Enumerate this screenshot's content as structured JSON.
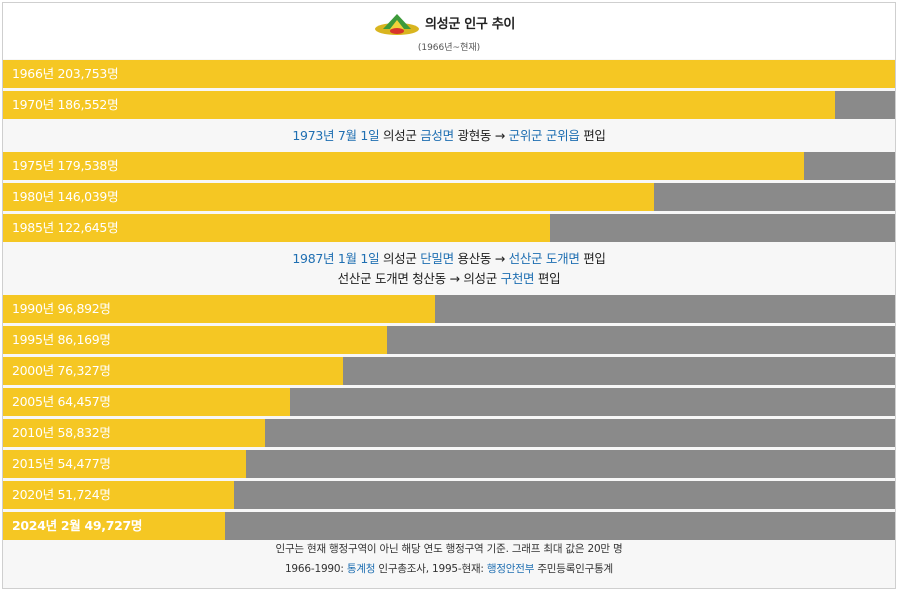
{
  "header": {
    "title": "의성군 인구 추이",
    "subtitle": "(1966년~현재)",
    "colors": {
      "bar": "#f5c723",
      "remainder": "#8a8a8a",
      "link": "#1f6fb2"
    }
  },
  "chart_data": {
    "type": "bar",
    "orientation": "horizontal",
    "max_value": 200000,
    "categories": [
      "1966년",
      "1970년",
      "1975년",
      "1980년",
      "1985년",
      "1990년",
      "1995년",
      "2000년",
      "2005년",
      "2010년",
      "2015년",
      "2020년",
      "2024년 2월"
    ],
    "values": [
      203753,
      186552,
      179538,
      146039,
      122645,
      96892,
      86169,
      76327,
      64457,
      58832,
      54477,
      51724,
      49727
    ],
    "labels": [
      "1966년 203,753명",
      "1970년 186,552명",
      "1975년 179,538명",
      "1980년 146,039명",
      "1985년 122,645명",
      "1990년 96,892명",
      "1995년 86,169명",
      "2000년 76,327명",
      "2005년 64,457명",
      "2010년 58,832명",
      "2015년 54,477명",
      "2020년 51,724명",
      "2024년 2월 49,727명"
    ]
  },
  "events": [
    {
      "after_index": 1,
      "lines": [
        [
          {
            "t": "1973년 7월 1일",
            "link": true
          },
          {
            "t": " 의성군 ",
            "link": false
          },
          {
            "t": "금성면",
            "link": true
          },
          {
            "t": " 광현동 → ",
            "link": false
          },
          {
            "t": "군위군 군위읍",
            "link": true
          },
          {
            "t": " 편입",
            "link": false
          }
        ]
      ]
    },
    {
      "after_index": 4,
      "lines": [
        [
          {
            "t": "1987년 1월 1일",
            "link": true
          },
          {
            "t": " 의성군 ",
            "link": false
          },
          {
            "t": "단밀면",
            "link": true
          },
          {
            "t": " 용산동 → ",
            "link": false
          },
          {
            "t": "선산군 도개면",
            "link": true
          },
          {
            "t": " 편입",
            "link": false
          }
        ],
        [
          {
            "t": "선산군 도개면 청산동 → 의성군 ",
            "link": false
          },
          {
            "t": "구천면",
            "link": true
          },
          {
            "t": " 편입",
            "link": false
          }
        ]
      ]
    }
  ],
  "footer": {
    "note": "인구는 현재 행정구역이 아닌 해당 연도 행정구역 기준. 그래프 최대 값은 20만 명",
    "source_prefix": "1966-1990: ",
    "source_link1": "통계청",
    "source_mid": " 인구총조사, 1995-현재: ",
    "source_link2": "행정안전부",
    "source_suffix": " 주민등록인구통계"
  }
}
